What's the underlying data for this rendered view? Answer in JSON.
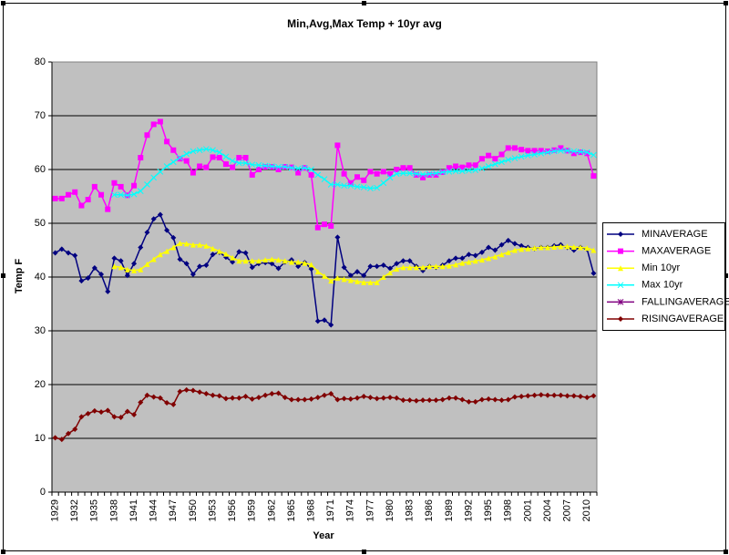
{
  "chart_data": {
    "type": "line",
    "title": "Min,Avg,Max Temp + 10yr avg",
    "x_label": "Year",
    "y_label": "Temp F",
    "categories": [
      "1929",
      null,
      null,
      "1932",
      null,
      null,
      "1935",
      null,
      null,
      "1938",
      null,
      null,
      "1941",
      null,
      null,
      "1944",
      null,
      null,
      "1947",
      null,
      null,
      "1950",
      null,
      null,
      "1953",
      null,
      null,
      "1956",
      null,
      null,
      "1959",
      null,
      null,
      "1962",
      null,
      null,
      "1965",
      null,
      null,
      "1968",
      null,
      null,
      "1971",
      null,
      null,
      "1974",
      null,
      null,
      "1977",
      null,
      null,
      "1980",
      null,
      null,
      "1983",
      null,
      null,
      "1986",
      null,
      null,
      "1989",
      null,
      null,
      "1992",
      null,
      null,
      "1995",
      null,
      null,
      "1998",
      null,
      null,
      "2001",
      null,
      null,
      "2004",
      null,
      null,
      "2007",
      null,
      null,
      "2010",
      null
    ],
    "ylim": [
      0,
      80
    ],
    "yticks": [
      0,
      10,
      20,
      30,
      40,
      50,
      60,
      70,
      80
    ],
    "grid": true,
    "legend": "right",
    "series": [
      {
        "name": "MINAVERAGE",
        "color": "#000080",
        "marker": "diamond",
        "values": [
          44.5,
          45.2,
          44.5,
          44,
          39.3,
          39.8,
          41.7,
          40.5,
          37.3,
          43.5,
          43,
          40.3,
          42.5,
          45.5,
          48.3,
          50.8,
          51.6,
          48.7,
          47.3,
          43.3,
          42.5,
          40.5,
          42,
          42.2,
          44.2,
          44.6,
          43.7,
          42.8,
          44.7,
          44.5,
          41.8,
          42.5,
          42.7,
          42.5,
          41.6,
          42.8,
          43.2,
          42,
          42.7,
          41.5,
          31.8,
          32,
          31.1,
          47.4,
          41.8,
          40.3,
          41,
          40.3,
          42,
          42,
          42.2,
          41.6,
          42.5,
          43,
          43,
          42,
          41.2,
          42,
          41.8,
          42.2,
          43,
          43.5,
          43.5,
          44.2,
          44,
          44.6,
          45.5,
          45,
          46,
          46.8,
          46.2,
          45.8,
          45.5,
          45.3,
          45.5,
          45.5,
          45.8,
          46,
          45.5,
          45,
          45.5,
          45.2,
          40.7
        ]
      },
      {
        "name": "MAXAVERAGE",
        "color": "#ff00ff",
        "marker": "square",
        "values": [
          54.6,
          54.6,
          55.3,
          55.8,
          53.3,
          54.4,
          56.8,
          55.3,
          52.6,
          57.5,
          56.8,
          55.2,
          57,
          62.2,
          66.4,
          68.4,
          68.9,
          65.2,
          63.6,
          62,
          61.6,
          59.4,
          60.6,
          60.4,
          62.3,
          62.2,
          61,
          60.4,
          62.2,
          62.2,
          59,
          60,
          60.5,
          60.5,
          60,
          60.5,
          60.4,
          59.4,
          60.3,
          59,
          49.2,
          49.8,
          49.5,
          64.5,
          59.2,
          57.5,
          58.6,
          58,
          59.6,
          59.2,
          59.6,
          59.2,
          60,
          60.3,
          60.3,
          59,
          58.5,
          59,
          59,
          59.5,
          60.3,
          60.6,
          60.4,
          60.8,
          60.8,
          62,
          62.6,
          62,
          62.8,
          64,
          64,
          63.7,
          63.5,
          63.5,
          63.5,
          63.4,
          63.6,
          64,
          63.5,
          63,
          63.2,
          63,
          58.8
        ]
      },
      {
        "name": "Min 10yr",
        "color": "#ffff00",
        "marker": "triangle",
        "values": [
          null,
          null,
          null,
          null,
          null,
          null,
          null,
          null,
          null,
          42,
          41.8,
          41.4,
          41.2,
          41.4,
          42.4,
          43.3,
          44.2,
          44.8,
          45.5,
          46.3,
          46.2,
          46,
          46,
          45.8,
          45.3,
          44.8,
          44.3,
          43.6,
          43,
          43,
          43,
          43,
          43.2,
          43.3,
          43.2,
          43,
          42.8,
          42.8,
          42.6,
          42.3,
          41,
          40.2,
          39.3,
          39.8,
          39.6,
          39.4,
          39.2,
          39,
          39,
          39,
          40,
          40.8,
          41.5,
          41.8,
          41.8,
          41.8,
          41.8,
          42,
          42,
          42,
          42.1,
          42.3,
          42.6,
          42.8,
          43,
          43.2,
          43.5,
          43.8,
          44.2,
          44.6,
          45,
          45.2,
          45.3,
          45.4,
          45.5,
          45.5,
          45.6,
          45.7,
          45.7,
          45.6,
          45.5,
          45.4,
          45
        ]
      },
      {
        "name": "Max 10yr",
        "color": "#00ffff",
        "marker": "x",
        "values": [
          null,
          null,
          null,
          null,
          null,
          null,
          null,
          null,
          null,
          55.3,
          55.3,
          55.2,
          55.4,
          56,
          57.2,
          58.5,
          59.6,
          60.6,
          61.4,
          62.2,
          62.9,
          63.4,
          63.6,
          63.8,
          63.6,
          63.2,
          62.4,
          61.6,
          61.2,
          61.2,
          60.9,
          60.8,
          60.7,
          60.6,
          60.5,
          60.5,
          60.3,
          60.2,
          60.3,
          60,
          59,
          58.2,
          57.2,
          57.2,
          57,
          57,
          56.8,
          56.7,
          56.5,
          56.6,
          57.5,
          58.5,
          59.2,
          59.3,
          59.3,
          59.2,
          59.1,
          59.2,
          59.3,
          59.5,
          59.6,
          59.7,
          59.7,
          59.8,
          59.9,
          60.2,
          60.6,
          61,
          61.4,
          61.8,
          62.1,
          62.4,
          62.6,
          62.8,
          63,
          63.2,
          63.4,
          63.5,
          63.5,
          63.4,
          63.3,
          63.2,
          62.7
        ]
      },
      {
        "name": "FALLINGAVERAGE",
        "color": "#800080",
        "marker": "star",
        "values": [
          null,
          null,
          null,
          null,
          null,
          null,
          null,
          null,
          null,
          null,
          null,
          null,
          null,
          null,
          null,
          null,
          null,
          null,
          null,
          null,
          null,
          null,
          null,
          null,
          null,
          null,
          null,
          null,
          null,
          null,
          null,
          null,
          null,
          null,
          null,
          null,
          null,
          null,
          null,
          null,
          null,
          null,
          null,
          null,
          null,
          null,
          null,
          null,
          null,
          null,
          null,
          null,
          null,
          null,
          null,
          null,
          null,
          null,
          null,
          null,
          null,
          null,
          null,
          null,
          null,
          null,
          null,
          null,
          null,
          null,
          null,
          null,
          null,
          null,
          null,
          null,
          null,
          null,
          null,
          null,
          null,
          null,
          null
        ]
      },
      {
        "name": "RISINGAVERAGE",
        "color": "#800000",
        "marker": "diamond",
        "values": [
          10.1,
          9.8,
          10.9,
          11.7,
          14,
          14.6,
          15.1,
          14.9,
          15.2,
          14,
          13.9,
          15,
          14.4,
          16.7,
          18,
          17.7,
          17.5,
          16.6,
          16.3,
          18.7,
          19,
          18.9,
          18.6,
          18.3,
          18,
          17.9,
          17.4,
          17.5,
          17.5,
          17.8,
          17.3,
          17.6,
          18,
          18.3,
          18.4,
          17.6,
          17.2,
          17.2,
          17.2,
          17.3,
          17.6,
          18,
          18.3,
          17.2,
          17.4,
          17.3,
          17.5,
          17.8,
          17.6,
          17.4,
          17.5,
          17.6,
          17.5,
          17.1,
          17.1,
          17,
          17.1,
          17.1,
          17.1,
          17.2,
          17.5,
          17.5,
          17.2,
          16.8,
          16.8,
          17.2,
          17.3,
          17.2,
          17.1,
          17.2,
          17.7,
          17.8,
          17.9,
          18,
          18.1,
          18,
          18,
          18,
          17.9,
          17.9,
          17.8,
          17.6,
          17.9
        ]
      }
    ]
  }
}
